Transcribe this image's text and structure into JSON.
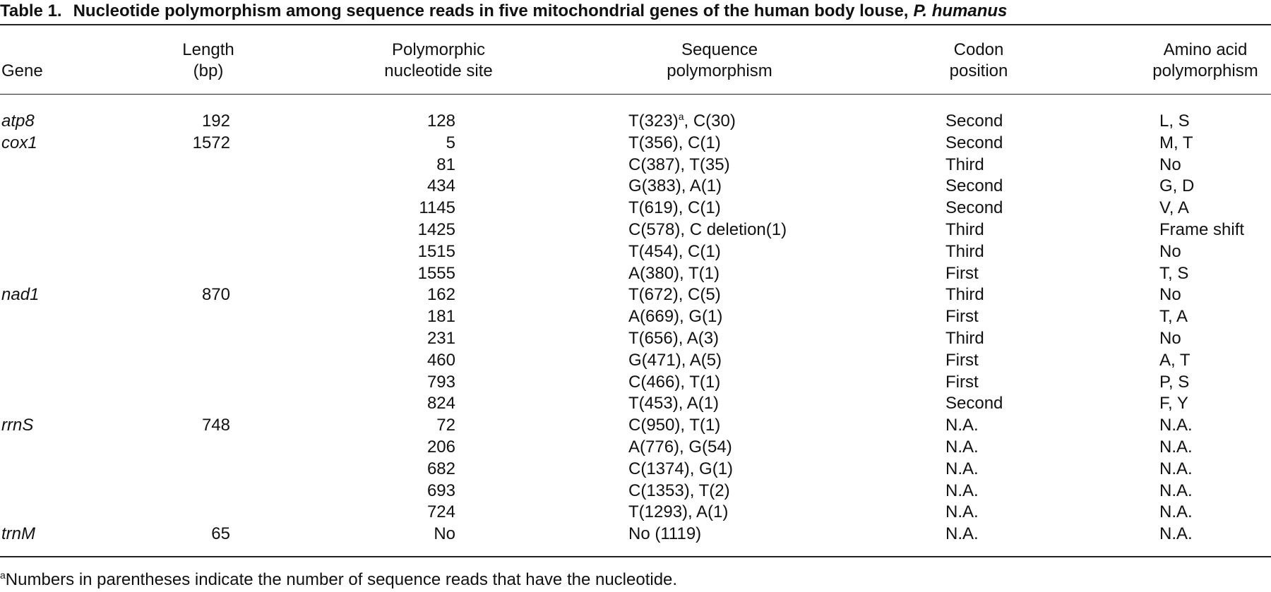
{
  "table": {
    "label": "Table 1.",
    "title": "Nucleotide polymorphism among sequence reads in five mitochondrial genes of the human body louse,",
    "title_species": "P. humanus",
    "headers": [
      [
        "Gene"
      ],
      [
        "Length",
        "(bp)"
      ],
      [
        "Polymorphic",
        "nucleotide site"
      ],
      [
        "Sequence",
        "polymorphism"
      ],
      [
        "Codon",
        "position"
      ],
      [
        "Amino acid",
        "polymorphism"
      ]
    ],
    "rows": [
      [
        "atp8",
        192,
        128,
        {
          "text": "T(323)",
          "note": "a",
          "rest": ", C(30)"
        },
        "Second",
        "L, S"
      ],
      [
        "cox1",
        1572,
        5,
        "T(356), C(1)",
        "Second",
        "M, T"
      ],
      [
        null,
        null,
        81,
        "C(387), T(35)",
        "Third",
        "No"
      ],
      [
        null,
        null,
        434,
        "G(383), A(1)",
        "Second",
        "G, D"
      ],
      [
        null,
        null,
        1145,
        "T(619), C(1)",
        "Second",
        "V, A"
      ],
      [
        null,
        null,
        1425,
        "C(578), C deletion(1)",
        "Third",
        "Frame shift"
      ],
      [
        null,
        null,
        1515,
        "T(454), C(1)",
        "Third",
        "No"
      ],
      [
        null,
        null,
        1555,
        "A(380), T(1)",
        "First",
        "T, S"
      ],
      [
        "nad1",
        870,
        162,
        "T(672), C(5)",
        "Third",
        "No"
      ],
      [
        null,
        null,
        181,
        "A(669), G(1)",
        "First",
        "T, A"
      ],
      [
        null,
        null,
        231,
        "T(656), A(3)",
        "Third",
        "No"
      ],
      [
        null,
        null,
        460,
        "G(471), A(5)",
        "First",
        "A, T"
      ],
      [
        null,
        null,
        793,
        "C(466), T(1)",
        "First",
        "P, S"
      ],
      [
        null,
        null,
        824,
        "T(453), A(1)",
        "Second",
        "F, Y"
      ],
      [
        "rrnS",
        748,
        72,
        "C(950), T(1)",
        "N.A.",
        "N.A."
      ],
      [
        null,
        null,
        206,
        "A(776), G(54)",
        "N.A.",
        "N.A."
      ],
      [
        null,
        null,
        682,
        "C(1374), G(1)",
        "N.A.",
        "N.A."
      ],
      [
        null,
        null,
        693,
        "C(1353), T(2)",
        "N.A.",
        "N.A."
      ],
      [
        null,
        null,
        724,
        "T(1293), A(1)",
        "N.A.",
        "N.A."
      ],
      [
        "trnM",
        65,
        "No",
        "No (1119)",
        "N.A.",
        "N.A."
      ]
    ],
    "footnote_marker": "a",
    "footnote": "Numbers in parentheses indicate the number of sequence reads that have the nucleotide."
  }
}
